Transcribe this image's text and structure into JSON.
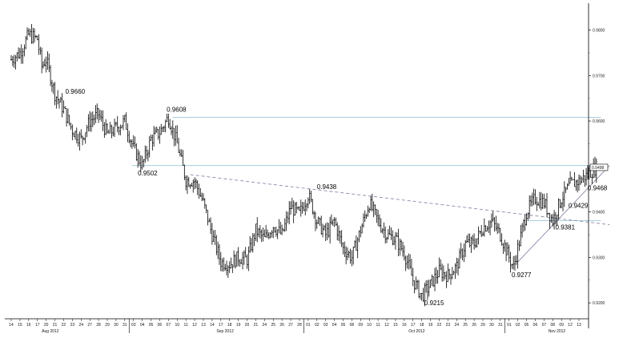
{
  "chart_data": {
    "type": "candlestick",
    "ylim": [
      0.9165,
      0.9845
    ],
    "y_ticks": [
      {
        "value": 0.98,
        "label": "0.9800"
      },
      {
        "value": 0.97,
        "label": "0.9700"
      },
      {
        "value": 0.96,
        "label": "0.9600"
      },
      {
        "value": 0.95,
        "label": "0.9498"
      },
      {
        "value": 0.94,
        "label": "0.9400"
      },
      {
        "value": 0.93,
        "label": "0.9300"
      },
      {
        "value": 0.92,
        "label": "0.9200"
      }
    ],
    "x_ticks": [
      "14",
      "15",
      "16",
      "17",
      "20",
      "21",
      "22",
      "23",
      "24",
      "27",
      "28",
      "29",
      "30",
      "31",
      "03",
      "04",
      "05",
      "06",
      "07",
      "10",
      "11",
      "12",
      "13",
      "14",
      "17",
      "18",
      "19",
      "20",
      "21",
      "24",
      "25",
      "26",
      "27",
      "28",
      "01",
      "02",
      "03",
      "04",
      "05",
      "08",
      "09",
      "10",
      "11",
      "12",
      "15",
      "16",
      "17",
      "18",
      "19",
      "22",
      "23",
      "24",
      "25",
      "26",
      "29",
      "30",
      "31",
      "01",
      "02",
      "05",
      "06",
      "07",
      "08",
      "09",
      "12",
      "13"
    ],
    "month_labels": [
      {
        "label": "Aug 2012",
        "at": 4
      },
      {
        "label": "Sep 2012",
        "at": 24
      },
      {
        "label": "Oct 2012",
        "at": 46
      },
      {
        "label": "Nov 2012",
        "at": 62
      }
    ],
    "month_separators": [
      14,
      34,
      57
    ],
    "price_path": [
      [
        0,
        0.9735
      ],
      [
        1,
        0.975
      ],
      [
        2,
        0.979
      ],
      [
        3,
        0.978
      ],
      [
        3.5,
        0.972
      ],
      [
        4,
        0.9735
      ],
      [
        5,
        0.966
      ],
      [
        6,
        0.9625
      ],
      [
        7,
        0.958
      ],
      [
        8,
        0.956
      ],
      [
        9,
        0.96
      ],
      [
        10,
        0.9615
      ],
      [
        11,
        0.957
      ],
      [
        12,
        0.9585
      ],
      [
        13,
        0.96
      ],
      [
        14,
        0.954
      ],
      [
        15,
        0.9502
      ],
      [
        16,
        0.956
      ],
      [
        17,
        0.9575
      ],
      [
        18,
        0.9608
      ],
      [
        19,
        0.955
      ],
      [
        20,
        0.947
      ],
      [
        21,
        0.9468
      ],
      [
        22,
        0.942
      ],
      [
        23,
        0.935
      ],
      [
        24,
        0.929
      ],
      [
        25,
        0.9285
      ],
      [
        26,
        0.93
      ],
      [
        27,
        0.9295
      ],
      [
        28,
        0.936
      ],
      [
        29,
        0.934
      ],
      [
        30,
        0.937
      ],
      [
        31,
        0.935
      ],
      [
        32,
        0.941
      ],
      [
        33,
        0.9395
      ],
      [
        34,
        0.9438
      ],
      [
        35,
        0.938
      ],
      [
        36,
        0.935
      ],
      [
        37,
        0.938
      ],
      [
        38,
        0.932
      ],
      [
        39,
        0.93
      ],
      [
        40,
        0.936
      ],
      [
        41,
        0.942
      ],
      [
        42,
        0.938
      ],
      [
        43,
        0.935
      ],
      [
        44,
        0.934
      ],
      [
        45,
        0.931
      ],
      [
        46,
        0.925
      ],
      [
        47,
        0.9215
      ],
      [
        48,
        0.924
      ],
      [
        49,
        0.927
      ],
      [
        50,
        0.926
      ],
      [
        51,
        0.928
      ],
      [
        52,
        0.933
      ],
      [
        53,
        0.933
      ],
      [
        54,
        0.9365
      ],
      [
        55,
        0.938
      ],
      [
        56,
        0.935
      ],
      [
        57,
        0.93
      ],
      [
        57.5,
        0.9277
      ],
      [
        58,
        0.932
      ],
      [
        59,
        0.94
      ],
      [
        60,
        0.943
      ],
      [
        61,
        0.942
      ],
      [
        62,
        0.9381
      ],
      [
        63,
        0.9429
      ],
      [
        64,
        0.946
      ],
      [
        65,
        0.9468
      ],
      [
        66,
        0.9482
      ],
      [
        67,
        0.9498
      ]
    ],
    "lines": [
      {
        "x1": 13.8,
        "y1": 0.9502,
        "x2": 67.5,
        "y2": 0.9502,
        "style": "solid",
        "color": "#9cc7d6"
      },
      {
        "x1": 18.5,
        "y1": 0.9608,
        "x2": 67.5,
        "y2": 0.9608,
        "style": "solid",
        "color": "#9cc7d6"
      },
      {
        "x1": 59.0,
        "y1": 0.9381,
        "x2": 67.5,
        "y2": 0.9381,
        "style": "solid",
        "color": "#9cc7d6"
      },
      {
        "x1": 20.5,
        "y1": 0.9482,
        "x2": 68.5,
        "y2": 0.9372,
        "style": "dashed",
        "color": "#8888aa"
      },
      {
        "x1": 58.0,
        "y1": 0.929,
        "x2": 68.5,
        "y2": 0.9502,
        "style": "solid",
        "color": "#8a8aa8"
      }
    ],
    "annotations": [
      {
        "text": "0.9660",
        "x": 6.2,
        "y": 0.966
      },
      {
        "text": "0.9608",
        "x": 17.8,
        "y": 0.962
      },
      {
        "text": "0.9502",
        "x": 14.5,
        "y": 0.948
      },
      {
        "text": "0.9438",
        "x": 35.0,
        "y": 0.945
      },
      {
        "text": "0.9215",
        "x": 47.3,
        "y": 0.9195
      },
      {
        "text": "0.9277",
        "x": 57.3,
        "y": 0.9257
      },
      {
        "text": "0.9381",
        "x": 62.3,
        "y": 0.9361
      },
      {
        "text": "0.9429",
        "x": 63.8,
        "y": 0.9409
      },
      {
        "text": "0.9468",
        "x": 66.0,
        "y": 0.9448
      }
    ],
    "last_price_label": "0.9498"
  }
}
